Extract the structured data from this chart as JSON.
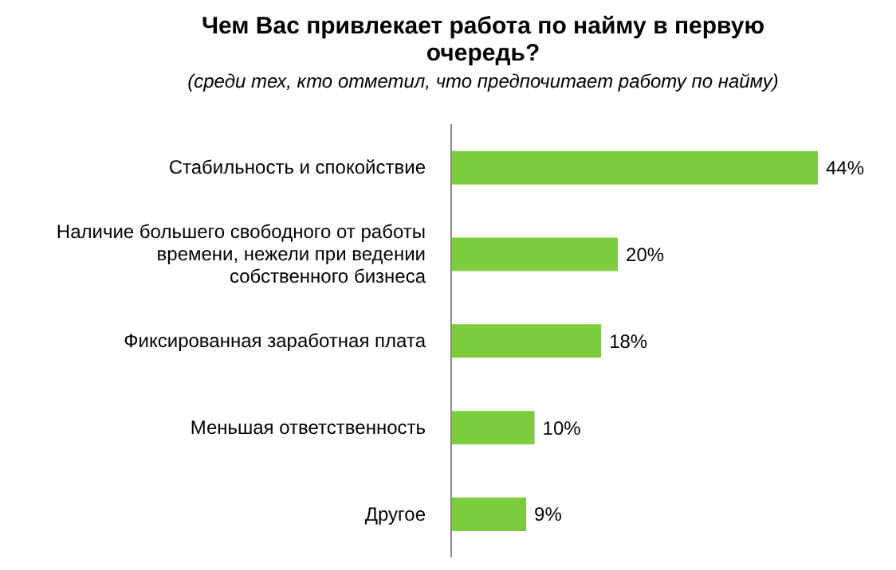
{
  "chart_data": {
    "type": "bar",
    "orientation": "horizontal",
    "title": "Чем Вас привлекает работа по найму в первую очередь?",
    "subtitle": "(среди тех, кто отметил, что предпочитает работу по найму)",
    "categories": [
      "Стабильность и спокойствие",
      "Наличие большего свободного от работы времени, нежели при ведении собственного бизнеса",
      "Фиксированная заработная плата",
      "Меньшая ответственность",
      "Другое"
    ],
    "values": [
      44,
      20,
      18,
      10,
      9
    ],
    "value_labels": [
      "44%",
      "20%",
      "18%",
      "10%",
      "9%"
    ],
    "color": "#7ccc3c"
  }
}
